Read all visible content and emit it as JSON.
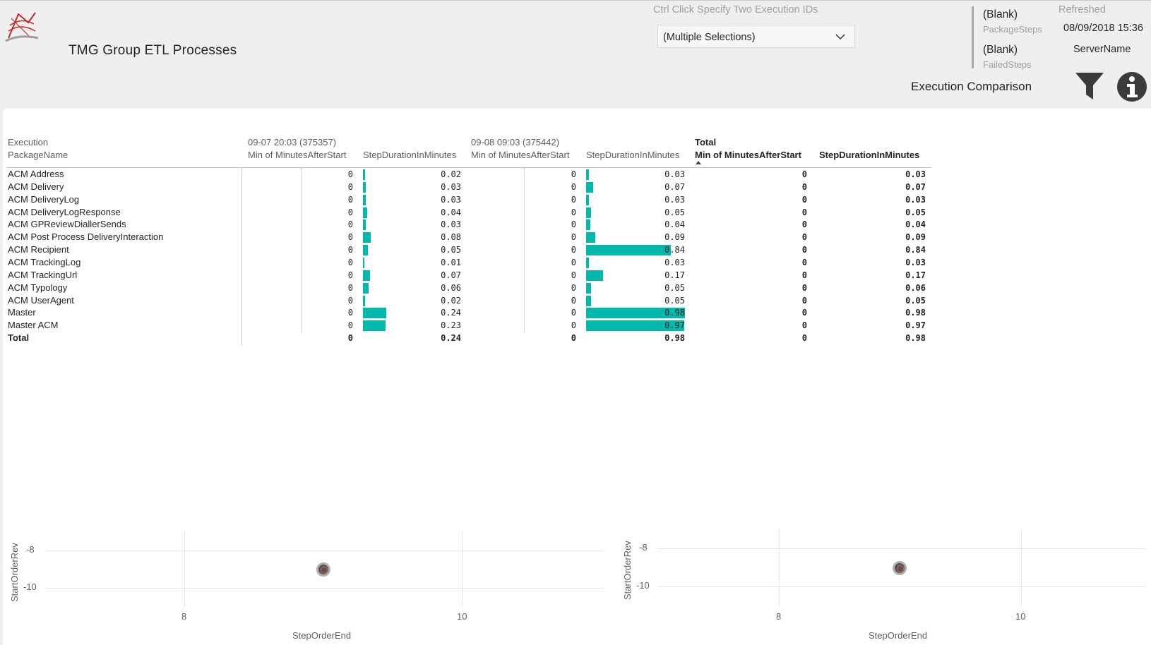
{
  "header": {
    "app_title": "TMG Group ETL Processes",
    "slicer_caption": "Ctrl Click Specify Two Execution IDs",
    "slicer_value": "(Multiple Selections)",
    "package_steps_value": "(Blank)",
    "package_steps_label": "PackageSteps",
    "failed_steps_value": "(Blank)",
    "failed_steps_label": "FailedSteps",
    "refreshed_label": "Refreshed",
    "refreshed_value": "08/09/2018 15:36",
    "server_name": "ServerName",
    "page_name": "Execution Comparison"
  },
  "matrix": {
    "row_header_1": "Execution",
    "row_header_2": "PackageName",
    "exec1_label": "09-07 20:03 (375357)",
    "exec2_label": "09-08 09:03 (375442)",
    "total_label": "Total",
    "col_min": "Min of MinutesAfterStart",
    "col_dur": "StepDurationInMinutes",
    "rows": [
      {
        "name": "ACM Address",
        "e1_min": "0",
        "e1_dur": "0.02",
        "e2_min": "0",
        "e2_dur": "0.03",
        "t_min": "0",
        "t_dur": "0.03"
      },
      {
        "name": "ACM Delivery",
        "e1_min": "0",
        "e1_dur": "0.03",
        "e2_min": "0",
        "e2_dur": "0.07",
        "t_min": "0",
        "t_dur": "0.07"
      },
      {
        "name": "ACM DeliveryLog",
        "e1_min": "0",
        "e1_dur": "0.03",
        "e2_min": "0",
        "e2_dur": "0.03",
        "t_min": "0",
        "t_dur": "0.03"
      },
      {
        "name": "ACM DeliveryLogResponse",
        "e1_min": "0",
        "e1_dur": "0.04",
        "e2_min": "0",
        "e2_dur": "0.05",
        "t_min": "0",
        "t_dur": "0.05"
      },
      {
        "name": "ACM GPReviewDiallerSends",
        "e1_min": "0",
        "e1_dur": "0.03",
        "e2_min": "0",
        "e2_dur": "0.04",
        "t_min": "0",
        "t_dur": "0.04"
      },
      {
        "name": "ACM Post Process DeliveryInteraction",
        "e1_min": "0",
        "e1_dur": "0.08",
        "e2_min": "0",
        "e2_dur": "0.09",
        "t_min": "0",
        "t_dur": "0.09"
      },
      {
        "name": "ACM Recipient",
        "e1_min": "0",
        "e1_dur": "0.05",
        "e2_min": "0",
        "e2_dur": "0.84",
        "t_min": "0",
        "t_dur": "0.84"
      },
      {
        "name": "ACM TrackingLog",
        "e1_min": "0",
        "e1_dur": "0.01",
        "e2_min": "0",
        "e2_dur": "0.03",
        "t_min": "0",
        "t_dur": "0.03"
      },
      {
        "name": "ACM TrackingUrl",
        "e1_min": "0",
        "e1_dur": "0.07",
        "e2_min": "0",
        "e2_dur": "0.17",
        "t_min": "0",
        "t_dur": "0.17"
      },
      {
        "name": "ACM Typology",
        "e1_min": "0",
        "e1_dur": "0.06",
        "e2_min": "0",
        "e2_dur": "0.05",
        "t_min": "0",
        "t_dur": "0.06"
      },
      {
        "name": "ACM UserAgent",
        "e1_min": "0",
        "e1_dur": "0.02",
        "e2_min": "0",
        "e2_dur": "0.05",
        "t_min": "0",
        "t_dur": "0.05"
      },
      {
        "name": "Master",
        "e1_min": "0",
        "e1_dur": "0.24",
        "e2_min": "0",
        "e2_dur": "0.98",
        "t_min": "0",
        "t_dur": "0.98"
      },
      {
        "name": "Master ACM",
        "e1_min": "0",
        "e1_dur": "0.23",
        "e2_min": "0",
        "e2_dur": "0.97",
        "t_min": "0",
        "t_dur": "0.97"
      }
    ],
    "total_row": {
      "name": "Total",
      "e1_min": "0",
      "e1_dur": "0.24",
      "e2_min": "0",
      "e2_dur": "0.98",
      "t_min": "0",
      "t_dur": "0.98"
    }
  },
  "chart_data": [
    {
      "type": "scatter",
      "xlabel": "StepOrderEnd",
      "ylabel": "StartOrderRev",
      "x_ticks": [
        "8",
        "10"
      ],
      "y_ticks": [
        "-8",
        "-10"
      ],
      "points": [
        {
          "x": 9,
          "y": -9
        }
      ]
    },
    {
      "type": "scatter",
      "xlabel": "StepOrderEnd",
      "ylabel": "StartOrderRev",
      "x_ticks": [
        "8",
        "10"
      ],
      "y_ticks": [
        "-8",
        "-10"
      ],
      "points": [
        {
          "x": 9,
          "y": -9
        }
      ]
    }
  ],
  "colors": {
    "bar": "#01b8aa",
    "background": "#efefef",
    "panel": "#ffffff"
  },
  "icons": {
    "filter": "filter-icon",
    "info": "info-icon",
    "logo": "report-logo-icon",
    "dropdown": "chevron-down-icon"
  }
}
